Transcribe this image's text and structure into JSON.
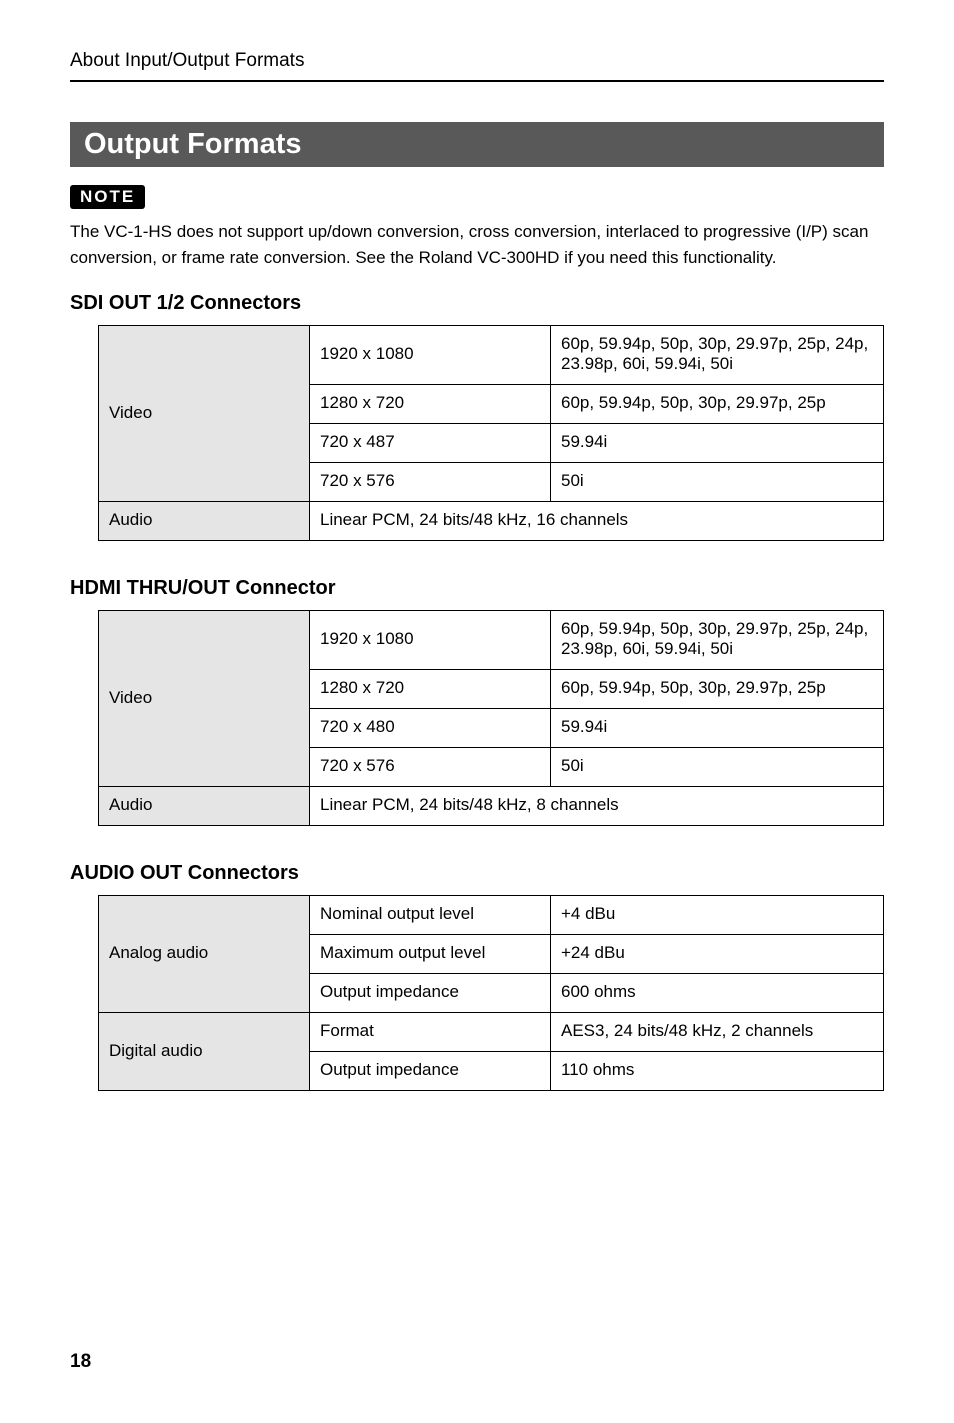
{
  "header": {
    "title": "About Input/Output Formats"
  },
  "sectionTitle": "Output Formats",
  "note": {
    "badge": "NOTE",
    "text": "The VC-1-HS does not support up/down conversion, cross conversion, interlaced to progressive (I/P) scan conversion, or frame rate conversion. See the Roland VC-300HD if you need this functionality."
  },
  "sdi": {
    "title": "SDI OUT 1/2 Connectors",
    "video_label": "Video",
    "audio_label": "Audio",
    "r0_res": "1920 x 1080",
    "r0_fmt": "60p, 59.94p, 50p, 30p, 29.97p, 25p, 24p, 23.98p, 60i, 59.94i, 50i",
    "r1_res": "1280 x 720",
    "r1_fmt": "60p, 59.94p, 50p, 30p, 29.97p, 25p",
    "r2_res": "720 x 487",
    "r2_fmt": "59.94i",
    "r3_res": "720 x 576",
    "r3_fmt": "50i",
    "audio_value": "Linear PCM, 24 bits/48 kHz, 16 channels"
  },
  "hdmi": {
    "title": "HDMI THRU/OUT Connector",
    "video_label": "Video",
    "audio_label": "Audio",
    "r0_res": "1920 x 1080",
    "r0_fmt": "60p, 59.94p, 50p, 30p, 29.97p, 25p, 24p, 23.98p, 60i, 59.94i, 50i",
    "r1_res": "1280 x 720",
    "r1_fmt": "60p, 59.94p, 50p, 30p, 29.97p, 25p",
    "r2_res": "720 x 480",
    "r2_fmt": "59.94i",
    "r3_res": "720 x 576",
    "r3_fmt": "50i",
    "audio_value": "Linear PCM, 24 bits/48 kHz, 8 channels"
  },
  "audio": {
    "title": "AUDIO OUT Connectors",
    "analog_label": "Analog audio",
    "digital_label": "Digital audio",
    "r0_k": "Nominal output level",
    "r0_v": "+4 dBu",
    "r1_k": "Maximum output level",
    "r1_v": "+24 dBu",
    "r2_k": "Output impedance",
    "r2_v": "600 ohms",
    "r3_k": "Format",
    "r3_v": "AES3, 24 bits/48 kHz, 2 channels",
    "r4_k": "Output impedance",
    "r4_v": "110 ohms"
  },
  "pageNumber": "18"
}
